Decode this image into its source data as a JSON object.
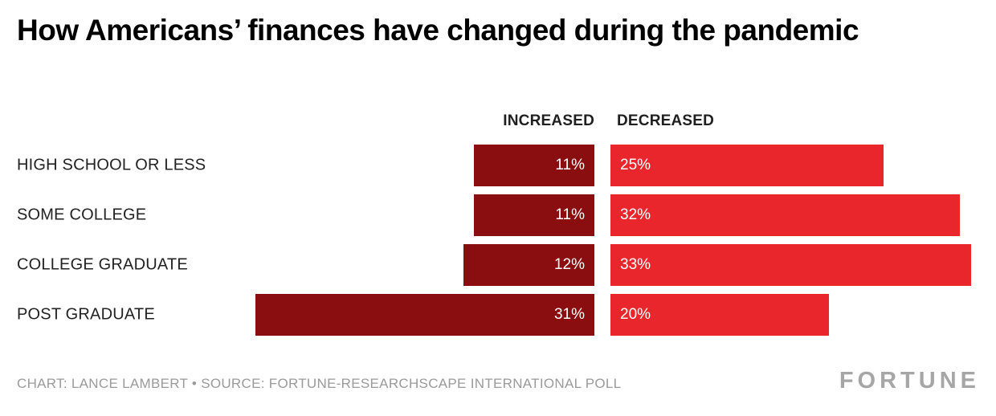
{
  "chart_data": {
    "type": "bar",
    "orientation": "horizontal-diverging",
    "title": "How Americans’ finances have changed during the pandemic",
    "categories": [
      "HIGH SCHOOL OR LESS",
      "SOME COLLEGE",
      "COLLEGE GRADUATE",
      "POST GRADUATE"
    ],
    "series": [
      {
        "name": "INCREASED",
        "values": [
          11,
          11,
          12,
          31
        ],
        "color": "#8a0e10",
        "label_align": "right"
      },
      {
        "name": "DECREASED",
        "values": [
          25,
          32,
          33,
          20
        ],
        "color": "#e8262c",
        "label_align": "left"
      }
    ],
    "value_suffix": "%",
    "value_labels_inside_bars": true,
    "legend_position": "top-center-split",
    "grid": false
  },
  "footer": {
    "credit": "CHART: LANCE LAMBERT • SOURCE: FORTUNE-RESEARCHSCAPE INTERNATIONAL POLL",
    "logo": "FORTUNE"
  },
  "colors": {
    "background": "#ffffff",
    "title_text": "#000000",
    "category_text": "#222222",
    "footer_text": "#9a9a9a",
    "logo_text": "#a6a6a6"
  }
}
